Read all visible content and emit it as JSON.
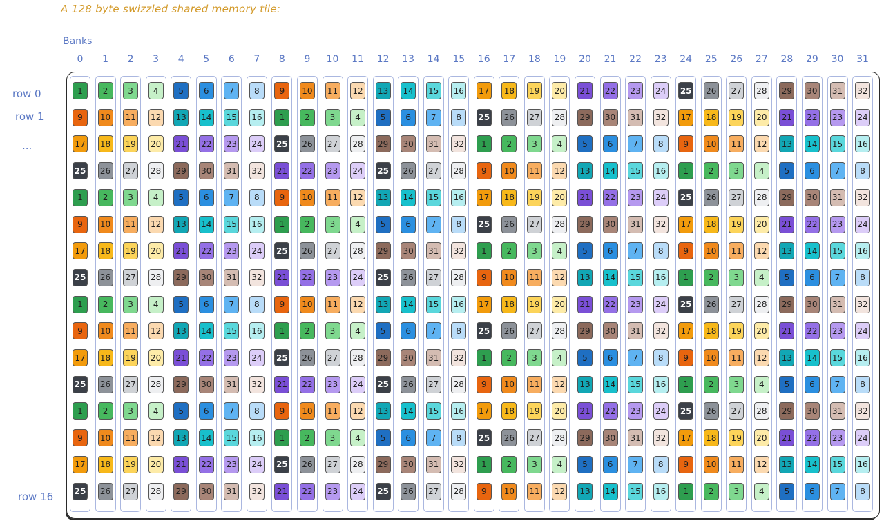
{
  "title": "A 128 byte swizzled shared memory tile:",
  "banks_label": "Banks",
  "bank_numbers": [
    "0",
    "1",
    "2",
    "3",
    "4",
    "5",
    "6",
    "7",
    "8",
    "9",
    "10",
    "11",
    "12",
    "13",
    "14",
    "15",
    "16",
    "17",
    "18",
    "19",
    "20",
    "21",
    "22",
    "23",
    "24",
    "25",
    "26",
    "27",
    "28",
    "29",
    "30",
    "31"
  ],
  "row_labels": {
    "row0": "row 0",
    "row1": "row 1",
    "ellipsis": "...",
    "row16": "row 16"
  },
  "palette": {
    "1": "#2e9e4f",
    "2": "#47b85e",
    "3": "#7fd88f",
    "4": "#c6f0c8",
    "5": "#1f6fc2",
    "6": "#2b8fe0",
    "7": "#5fb3f2",
    "8": "#b9dcf8",
    "9": "#e8650f",
    "10": "#f08a1d",
    "11": "#f7ad5f",
    "12": "#fbd9b0",
    "13": "#12a7b5",
    "14": "#18c0cc",
    "15": "#5ad7dc",
    "16": "#b6eef0",
    "17": "#f29b0c",
    "18": "#f7b81a",
    "19": "#fcd45a",
    "20": "#fdeba8",
    "21": "#7a4fd6",
    "22": "#9470e6",
    "23": "#b599ef",
    "24": "#dccdf8",
    "25": "#3b4048",
    "26": "#8d9299",
    "27": "#cfd2d6",
    "28": "#eeeff1",
    "29": "#8c6a5c",
    "30": "#a88578",
    "31": "#d4bcb2",
    "32": "#f2e4de"
  },
  "dark_values": [
    "25"
  ],
  "grid": [
    [
      "1",
      "2",
      "3",
      "4",
      "5",
      "6",
      "7",
      "8",
      "9",
      "10",
      "11",
      "12",
      "13",
      "14",
      "15",
      "16",
      "17",
      "18",
      "19",
      "20",
      "21",
      "22",
      "23",
      "24",
      "25",
      "26",
      "27",
      "28",
      "29",
      "30",
      "31",
      "32"
    ],
    [
      "9",
      "10",
      "11",
      "12",
      "13",
      "14",
      "15",
      "16",
      "1",
      "2",
      "3",
      "4",
      "5",
      "6",
      "7",
      "8",
      "25",
      "26",
      "27",
      "28",
      "29",
      "30",
      "31",
      "32",
      "17",
      "18",
      "19",
      "20",
      "21",
      "22",
      "23",
      "24"
    ],
    [
      "17",
      "18",
      "19",
      "20",
      "21",
      "22",
      "23",
      "24",
      "25",
      "26",
      "27",
      "28",
      "29",
      "30",
      "31",
      "32",
      "1",
      "2",
      "3",
      "4",
      "5",
      "6",
      "7",
      "8",
      "9",
      "10",
      "11",
      "12",
      "13",
      "14",
      "15",
      "16"
    ],
    [
      "25",
      "26",
      "27",
      "28",
      "29",
      "30",
      "31",
      "32",
      "21",
      "22",
      "23",
      "24",
      "25",
      "26",
      "27",
      "28",
      "9",
      "10",
      "11",
      "12",
      "13",
      "14",
      "15",
      "16",
      "1",
      "2",
      "3",
      "4",
      "5",
      "6",
      "7",
      "8"
    ],
    [
      "1",
      "2",
      "3",
      "4",
      "5",
      "6",
      "7",
      "8",
      "9",
      "10",
      "11",
      "12",
      "13",
      "14",
      "15",
      "16",
      "17",
      "18",
      "19",
      "20",
      "21",
      "22",
      "23",
      "24",
      "25",
      "26",
      "27",
      "28",
      "29",
      "30",
      "31",
      "32"
    ],
    [
      "9",
      "10",
      "11",
      "12",
      "13",
      "14",
      "15",
      "16",
      "1",
      "2",
      "3",
      "4",
      "5",
      "6",
      "7",
      "8",
      "25",
      "26",
      "27",
      "28",
      "29",
      "30",
      "31",
      "32",
      "17",
      "18",
      "19",
      "20",
      "21",
      "22",
      "23",
      "24"
    ],
    [
      "17",
      "18",
      "19",
      "20",
      "21",
      "22",
      "23",
      "24",
      "25",
      "26",
      "27",
      "28",
      "29",
      "30",
      "31",
      "32",
      "1",
      "2",
      "3",
      "4",
      "5",
      "6",
      "7",
      "8",
      "9",
      "10",
      "11",
      "12",
      "13",
      "14",
      "15",
      "16"
    ],
    [
      "25",
      "26",
      "27",
      "28",
      "29",
      "30",
      "31",
      "32",
      "21",
      "22",
      "23",
      "24",
      "25",
      "26",
      "27",
      "28",
      "9",
      "10",
      "11",
      "12",
      "13",
      "14",
      "15",
      "16",
      "1",
      "2",
      "3",
      "4",
      "5",
      "6",
      "7",
      "8"
    ],
    [
      "1",
      "2",
      "3",
      "4",
      "5",
      "6",
      "7",
      "8",
      "9",
      "10",
      "11",
      "12",
      "13",
      "14",
      "15",
      "16",
      "17",
      "18",
      "19",
      "20",
      "21",
      "22",
      "23",
      "24",
      "25",
      "26",
      "27",
      "28",
      "29",
      "30",
      "31",
      "32"
    ],
    [
      "9",
      "10",
      "11",
      "12",
      "13",
      "14",
      "15",
      "16",
      "1",
      "2",
      "3",
      "4",
      "5",
      "6",
      "7",
      "8",
      "25",
      "26",
      "27",
      "28",
      "29",
      "30",
      "31",
      "32",
      "17",
      "18",
      "19",
      "20",
      "21",
      "22",
      "23",
      "24"
    ],
    [
      "17",
      "18",
      "19",
      "20",
      "21",
      "22",
      "23",
      "24",
      "25",
      "26",
      "27",
      "28",
      "29",
      "30",
      "31",
      "32",
      "1",
      "2",
      "3",
      "4",
      "5",
      "6",
      "7",
      "8",
      "9",
      "10",
      "11",
      "12",
      "13",
      "14",
      "15",
      "16"
    ],
    [
      "25",
      "26",
      "27",
      "28",
      "29",
      "30",
      "31",
      "32",
      "21",
      "22",
      "23",
      "24",
      "25",
      "26",
      "27",
      "28",
      "9",
      "10",
      "11",
      "12",
      "13",
      "14",
      "15",
      "16",
      "1",
      "2",
      "3",
      "4",
      "5",
      "6",
      "7",
      "8"
    ],
    [
      "1",
      "2",
      "3",
      "4",
      "5",
      "6",
      "7",
      "8",
      "9",
      "10",
      "11",
      "12",
      "13",
      "14",
      "15",
      "16",
      "17",
      "18",
      "19",
      "20",
      "21",
      "22",
      "23",
      "24",
      "25",
      "26",
      "27",
      "28",
      "29",
      "30",
      "31",
      "32"
    ],
    [
      "9",
      "10",
      "11",
      "12",
      "13",
      "14",
      "15",
      "16",
      "1",
      "2",
      "3",
      "4",
      "5",
      "6",
      "7",
      "8",
      "25",
      "26",
      "27",
      "28",
      "29",
      "30",
      "31",
      "32",
      "17",
      "18",
      "19",
      "20",
      "21",
      "22",
      "23",
      "24"
    ],
    [
      "17",
      "18",
      "19",
      "20",
      "21",
      "22",
      "23",
      "24",
      "25",
      "26",
      "27",
      "28",
      "29",
      "30",
      "31",
      "32",
      "1",
      "2",
      "3",
      "4",
      "5",
      "6",
      "7",
      "8",
      "9",
      "10",
      "11",
      "12",
      "13",
      "14",
      "15",
      "16"
    ],
    [
      "25",
      "26",
      "27",
      "28",
      "29",
      "30",
      "31",
      "32",
      "21",
      "22",
      "23",
      "24",
      "25",
      "26",
      "27",
      "28",
      "9",
      "10",
      "11",
      "12",
      "13",
      "14",
      "15",
      "16",
      "1",
      "2",
      "3",
      "4",
      "5",
      "6",
      "7",
      "8"
    ]
  ]
}
